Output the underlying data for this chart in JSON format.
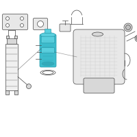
{
  "bg_color": "#ffffff",
  "highlight_color": "#3dbccc",
  "highlight_color2": "#5acfde",
  "highlight_dark": "#2a9aaa",
  "highlight_inner": "#6ad8e8",
  "line_color": "#444444",
  "line_width": 0.5,
  "gray_fill": "#e8e8e8",
  "gray_mid": "#d8d8d8",
  "gray_dark": "#c0c0c0",
  "gray_light": "#f0f0f0"
}
